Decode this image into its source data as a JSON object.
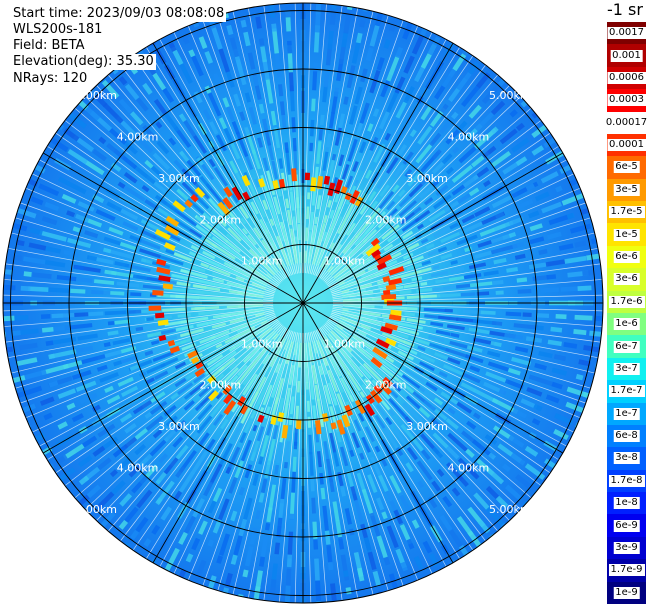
{
  "info": {
    "start_time": "Start time: 2023/09/03 08:08:08",
    "device": "WLS200s-181",
    "field": "Field: BETA",
    "elevation": "Elevation(deg): 35.30",
    "nrays": "NRays: 120"
  },
  "colorbar": {
    "title": "-1 sr",
    "labels": [
      "0.0017",
      "0.001",
      "0.0006",
      "0.0003",
      "0.00017",
      "0.0001",
      "6e-5",
      "3e-5",
      "1.7e-5",
      "1e-5",
      "6e-6",
      "3e-6",
      "1.7e-6",
      "1e-6",
      "6e-7",
      "3e-7",
      "1.7e-7",
      "1e-7",
      "6e-8",
      "3e-8",
      "1.7e-8",
      "1e-8",
      "6e-9",
      "3e-9",
      "1.7e-9",
      "1e-9"
    ],
    "colors": [
      "#7f0000",
      "#b00000",
      "#d00000",
      "#ff0000",
      "#ffffff",
      "#ff3000",
      "#ff6a00",
      "#ff9a00",
      "#ffc000",
      "#ffe400",
      "#f0ff10",
      "#d8ff2a",
      "#bfff40",
      "#80ff80",
      "#40ffc0",
      "#10f0f0",
      "#00d0ff",
      "#00a8ff",
      "#0080ff",
      "#0060ff",
      "#0040ff",
      "#0020ff",
      "#0000f0",
      "#0000d0",
      "#0000a8",
      "#000080"
    ]
  },
  "chart_data": {
    "type": "heatmap",
    "title": "",
    "projection": "polar (PPI scan)",
    "field": "BETA",
    "elevation_deg": 35.3,
    "n_rays": 120,
    "range_rings_km": [
      1,
      2,
      3,
      4,
      5
    ],
    "ring_labels": [
      "1.00km",
      "2.00km",
      "3.00km",
      "4.00km",
      "5.00km"
    ],
    "azimuth_spokes_deg": [
      0,
      30,
      60,
      90,
      120,
      150,
      180,
      210,
      240,
      270,
      300,
      330
    ],
    "color_scale": "log",
    "value_range": [
      1e-09,
      0.0017
    ],
    "features": [
      {
        "description": "aerosol / cloud ring of high backscatter",
        "range_km": [
          1.9,
          2.6
        ],
        "peak_value": 6e-05
      },
      {
        "description": "background noise beyond",
        "range_km": [
          3,
          5.5
        ],
        "typical_value": 1.7e-08
      }
    ]
  }
}
